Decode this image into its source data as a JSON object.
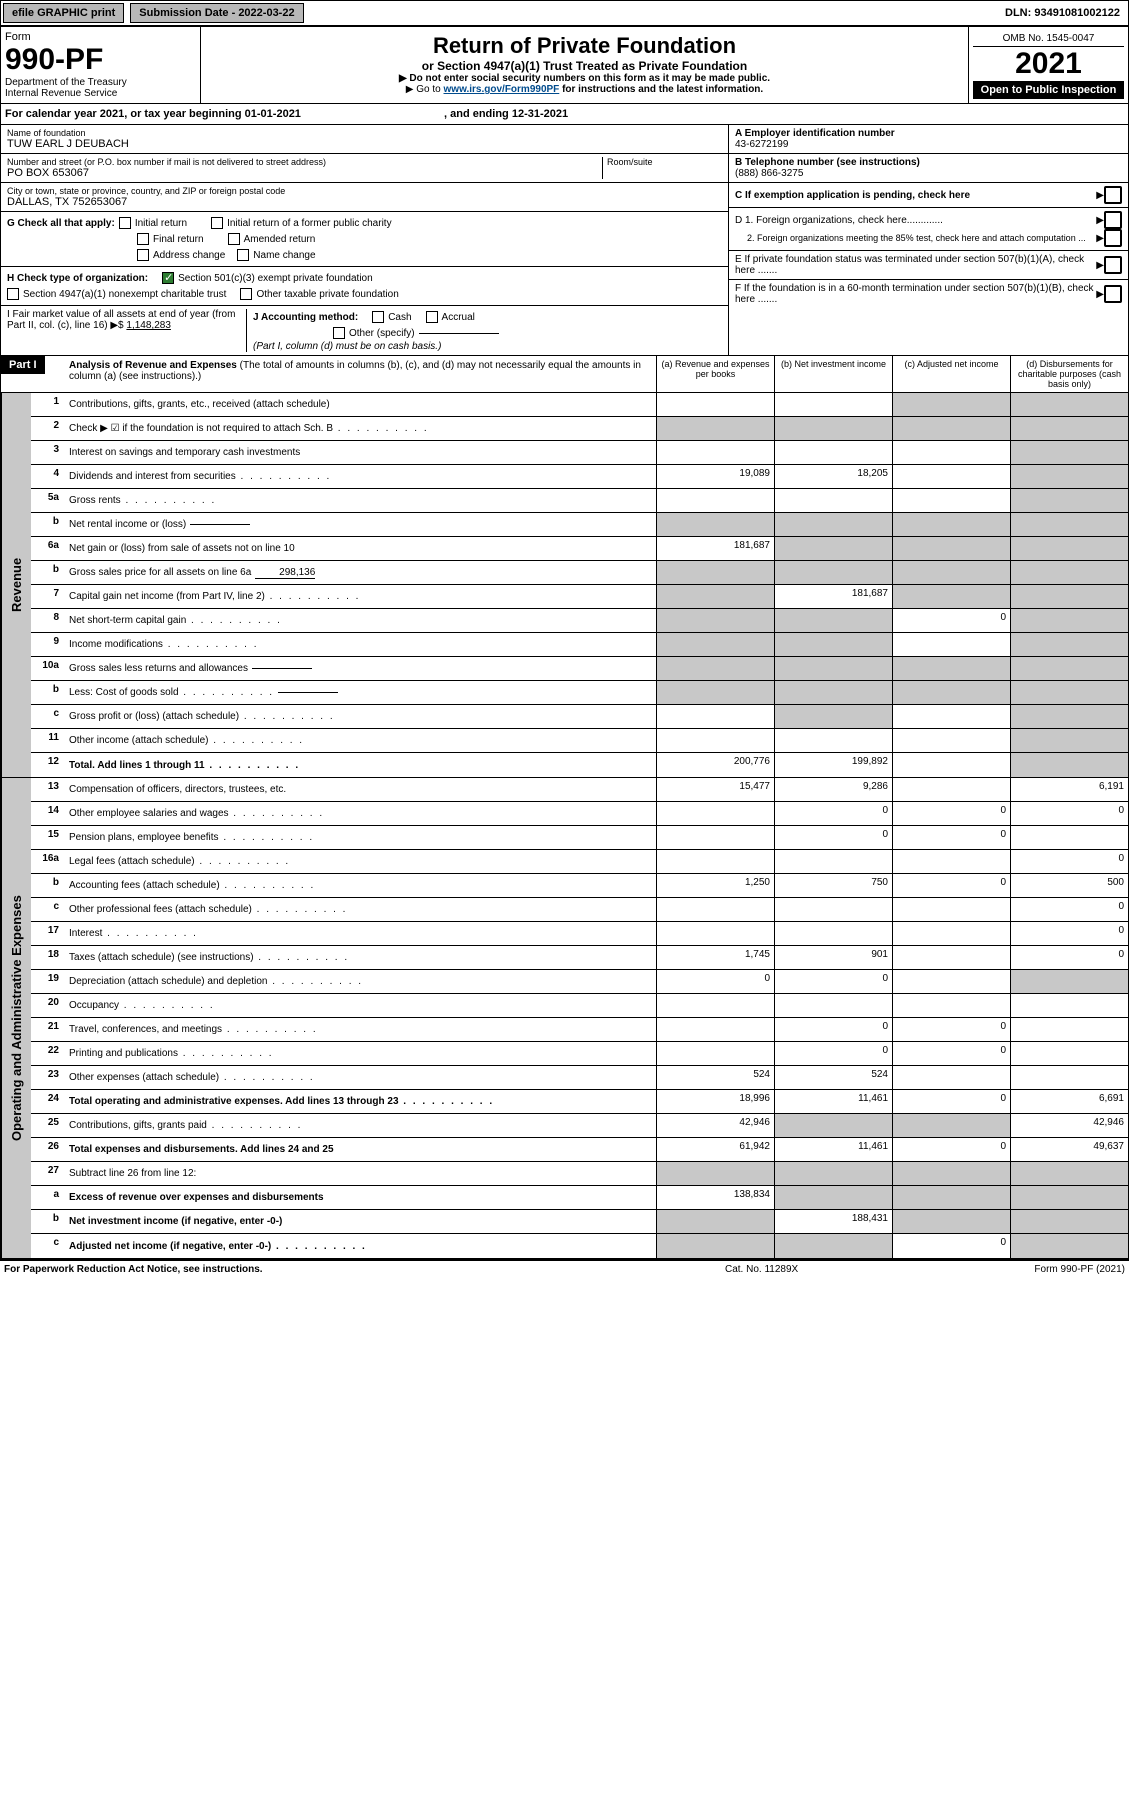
{
  "topbar": {
    "efile": "efile GRAPHIC print",
    "sub_label": "Submission Date - 2022-03-22",
    "dln": "DLN: 93491081002122"
  },
  "header": {
    "form_word": "Form",
    "form_num": "990-PF",
    "dept": "Department of the Treasury",
    "irs": "Internal Revenue Service",
    "title": "Return of Private Foundation",
    "subtitle": "or Section 4947(a)(1) Trust Treated as Private Foundation",
    "instr1": "▶ Do not enter social security numbers on this form as it may be made public.",
    "instr2_pre": "▶ Go to ",
    "instr2_link": "www.irs.gov/Form990PF",
    "instr2_post": " for instructions and the latest information.",
    "omb": "OMB No. 1545-0047",
    "year": "2021",
    "open": "Open to Public Inspection"
  },
  "calyear": {
    "text_pre": "For calendar year 2021, or tax year beginning ",
    "begin": "01-01-2021",
    "mid": " , and ending ",
    "end": "12-31-2021"
  },
  "info": {
    "name_label": "Name of foundation",
    "name": "TUW EARL J DEUBACH",
    "addr_label": "Number and street (or P.O. box number if mail is not delivered to street address)",
    "addr": "PO BOX 653067",
    "room_label": "Room/suite",
    "city_label": "City or town, state or province, country, and ZIP or foreign postal code",
    "city": "DALLAS, TX  752653067",
    "a_label": "A Employer identification number",
    "a_val": "43-6272199",
    "b_label": "B Telephone number (see instructions)",
    "b_val": "(888) 866-3275",
    "c_label": "C If exemption application is pending, check here",
    "d1": "D 1. Foreign organizations, check here.............",
    "d2": "2. Foreign organizations meeting the 85% test, check here and attach computation ...",
    "e": "E If private foundation status was terminated under section 507(b)(1)(A), check here .......",
    "f": "F If the foundation is in a 60-month termination under section 507(b)(1)(B), check here .......",
    "g_label": "G Check all that apply:",
    "g_opts": [
      "Initial return",
      "Initial return of a former public charity",
      "Final return",
      "Amended return",
      "Address change",
      "Name change"
    ],
    "h_label": "H Check type of organization:",
    "h1": "Section 501(c)(3) exempt private foundation",
    "h2": "Section 4947(a)(1) nonexempt charitable trust",
    "h3": "Other taxable private foundation",
    "i_label": "I Fair market value of all assets at end of year (from Part II, col. (c), line 16) ▶$ ",
    "i_val": "1,148,283",
    "j_label": "J Accounting method:",
    "j_cash": "Cash",
    "j_accr": "Accrual",
    "j_other": "Other (specify)",
    "j_note": "(Part I, column (d) must be on cash basis.)"
  },
  "part1": {
    "label": "Part I",
    "title": "Analysis of Revenue and Expenses",
    "title_note": " (The total of amounts in columns (b), (c), and (d) may not necessarily equal the amounts in column (a) (see instructions).)",
    "col_a": "(a) Revenue and expenses per books",
    "col_b": "(b) Net investment income",
    "col_c": "(c) Adjusted net income",
    "col_d": "(d) Disbursements for charitable purposes (cash basis only)"
  },
  "sections": {
    "revenue": "Revenue",
    "expenses": "Operating and Administrative Expenses"
  },
  "rows": [
    {
      "n": "1",
      "d": "Contributions, gifts, grants, etc., received (attach schedule)",
      "a": "",
      "b": "",
      "c": "g",
      "dd": "g"
    },
    {
      "n": "2",
      "d": "Check ▶ ☑ if the foundation is not required to attach Sch. B",
      "dots": true,
      "a": "g",
      "b": "g",
      "c": "g",
      "dd": "g"
    },
    {
      "n": "3",
      "d": "Interest on savings and temporary cash investments",
      "a": "",
      "b": "",
      "c": "",
      "dd": "g"
    },
    {
      "n": "4",
      "d": "Dividends and interest from securities",
      "dots": true,
      "a": "19,089",
      "b": "18,205",
      "c": "",
      "dd": "g"
    },
    {
      "n": "5a",
      "d": "Gross rents",
      "dots": true,
      "a": "",
      "b": "",
      "c": "",
      "dd": "g"
    },
    {
      "n": "b",
      "d": "Net rental income or (loss)",
      "a": "g",
      "b": "g",
      "c": "g",
      "dd": "g",
      "inline": true
    },
    {
      "n": "6a",
      "d": "Net gain or (loss) from sale of assets not on line 10",
      "a": "181,687",
      "b": "g",
      "c": "g",
      "dd": "g"
    },
    {
      "n": "b",
      "d": "Gross sales price for all assets on line 6a",
      "a": "g",
      "b": "g",
      "c": "g",
      "dd": "g",
      "inline": true,
      "inval": "298,136"
    },
    {
      "n": "7",
      "d": "Capital gain net income (from Part IV, line 2)",
      "dots": true,
      "a": "g",
      "b": "181,687",
      "c": "g",
      "dd": "g"
    },
    {
      "n": "8",
      "d": "Net short-term capital gain",
      "dots": true,
      "a": "g",
      "b": "g",
      "c": "0",
      "dd": "g"
    },
    {
      "n": "9",
      "d": "Income modifications",
      "dots": true,
      "a": "g",
      "b": "g",
      "c": "",
      "dd": "g"
    },
    {
      "n": "10a",
      "d": "Gross sales less returns and allowances",
      "a": "g",
      "b": "g",
      "c": "g",
      "dd": "g",
      "inline": true
    },
    {
      "n": "b",
      "d": "Less: Cost of goods sold",
      "dots": true,
      "a": "g",
      "b": "g",
      "c": "g",
      "dd": "g",
      "inline": true
    },
    {
      "n": "c",
      "d": "Gross profit or (loss) (attach schedule)",
      "dots": true,
      "a": "",
      "b": "g",
      "c": "",
      "dd": "g"
    },
    {
      "n": "11",
      "d": "Other income (attach schedule)",
      "dots": true,
      "a": "",
      "b": "",
      "c": "",
      "dd": "g"
    },
    {
      "n": "12",
      "d": "Total. Add lines 1 through 11",
      "dots": true,
      "bold": true,
      "a": "200,776",
      "b": "199,892",
      "c": "",
      "dd": "g"
    }
  ],
  "exp_rows": [
    {
      "n": "13",
      "d": "Compensation of officers, directors, trustees, etc.",
      "a": "15,477",
      "b": "9,286",
      "c": "",
      "dd": "6,191"
    },
    {
      "n": "14",
      "d": "Other employee salaries and wages",
      "dots": true,
      "a": "",
      "b": "0",
      "c": "0",
      "dd": "0"
    },
    {
      "n": "15",
      "d": "Pension plans, employee benefits",
      "dots": true,
      "a": "",
      "b": "0",
      "c": "0",
      "dd": ""
    },
    {
      "n": "16a",
      "d": "Legal fees (attach schedule)",
      "dots": true,
      "a": "",
      "b": "",
      "c": "",
      "dd": "0"
    },
    {
      "n": "b",
      "d": "Accounting fees (attach schedule)",
      "dots": true,
      "a": "1,250",
      "b": "750",
      "c": "0",
      "dd": "500"
    },
    {
      "n": "c",
      "d": "Other professional fees (attach schedule)",
      "dots": true,
      "a": "",
      "b": "",
      "c": "",
      "dd": "0"
    },
    {
      "n": "17",
      "d": "Interest",
      "dots": true,
      "a": "",
      "b": "",
      "c": "",
      "dd": "0"
    },
    {
      "n": "18",
      "d": "Taxes (attach schedule) (see instructions)",
      "dots": true,
      "a": "1,745",
      "b": "901",
      "c": "",
      "dd": "0"
    },
    {
      "n": "19",
      "d": "Depreciation (attach schedule) and depletion",
      "dots": true,
      "a": "0",
      "b": "0",
      "c": "",
      "dd": "g"
    },
    {
      "n": "20",
      "d": "Occupancy",
      "dots": true,
      "a": "",
      "b": "",
      "c": "",
      "dd": ""
    },
    {
      "n": "21",
      "d": "Travel, conferences, and meetings",
      "dots": true,
      "a": "",
      "b": "0",
      "c": "0",
      "dd": ""
    },
    {
      "n": "22",
      "d": "Printing and publications",
      "dots": true,
      "a": "",
      "b": "0",
      "c": "0",
      "dd": ""
    },
    {
      "n": "23",
      "d": "Other expenses (attach schedule)",
      "dots": true,
      "a": "524",
      "b": "524",
      "c": "",
      "dd": ""
    },
    {
      "n": "24",
      "d": "Total operating and administrative expenses. Add lines 13 through 23",
      "dots": true,
      "bold": true,
      "a": "18,996",
      "b": "11,461",
      "c": "0",
      "dd": "6,691"
    },
    {
      "n": "25",
      "d": "Contributions, gifts, grants paid",
      "dots": true,
      "a": "42,946",
      "b": "g",
      "c": "g",
      "dd": "42,946"
    },
    {
      "n": "26",
      "d": "Total expenses and disbursements. Add lines 24 and 25",
      "bold": true,
      "a": "61,942",
      "b": "11,461",
      "c": "0",
      "dd": "49,637"
    },
    {
      "n": "27",
      "d": "Subtract line 26 from line 12:",
      "a": "g",
      "b": "g",
      "c": "g",
      "dd": "g"
    },
    {
      "n": "a",
      "d": "Excess of revenue over expenses and disbursements",
      "bold": true,
      "a": "138,834",
      "b": "g",
      "c": "g",
      "dd": "g"
    },
    {
      "n": "b",
      "d": "Net investment income (if negative, enter -0-)",
      "bold": true,
      "a": "g",
      "b": "188,431",
      "c": "g",
      "dd": "g"
    },
    {
      "n": "c",
      "d": "Adjusted net income (if negative, enter -0-)",
      "dots": true,
      "bold": true,
      "a": "g",
      "b": "g",
      "c": "0",
      "dd": "g"
    }
  ],
  "footer": {
    "left": "For Paperwork Reduction Act Notice, see instructions.",
    "mid": "Cat. No. 11289X",
    "right": "Form 990-PF (2021)"
  }
}
